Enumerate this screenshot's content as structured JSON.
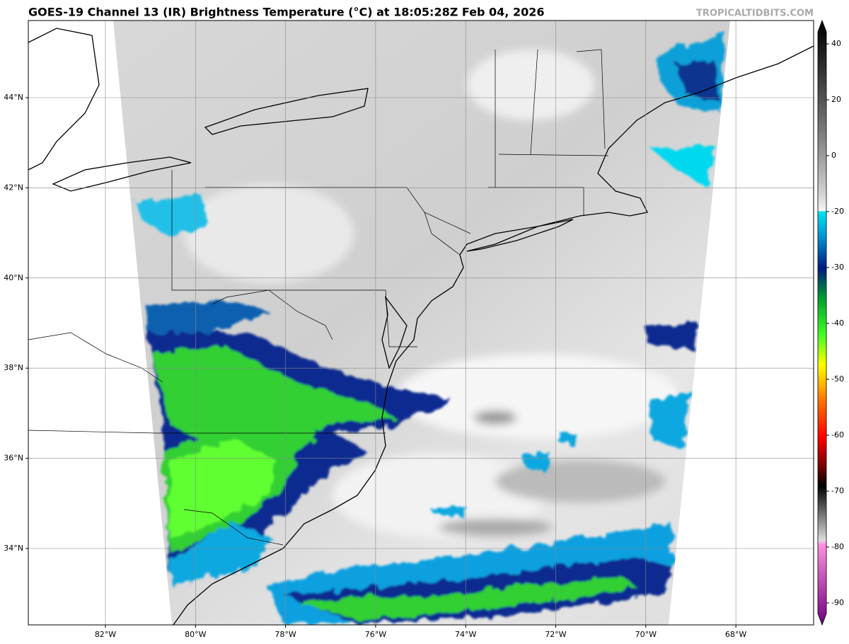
{
  "header": {
    "title": "GOES-19 Channel 13 (IR) Brightness Temperature (°C) at 18:05:28Z Feb 04, 2026",
    "watermark": "TROPICALTIDBITS.COM"
  },
  "map": {
    "longitude_labels": [
      "82°W",
      "80°W",
      "78°W",
      "76°W",
      "74°W",
      "72°W",
      "70°W",
      "68°W"
    ],
    "latitude_labels": [
      "44°N",
      "42°N",
      "40°N",
      "38°N",
      "36°N",
      "34°N"
    ]
  },
  "colorbar": {
    "ticks": [
      40,
      20,
      0,
      -20,
      -30,
      -40,
      -50,
      -60,
      -70,
      -80,
      -90
    ]
  }
}
